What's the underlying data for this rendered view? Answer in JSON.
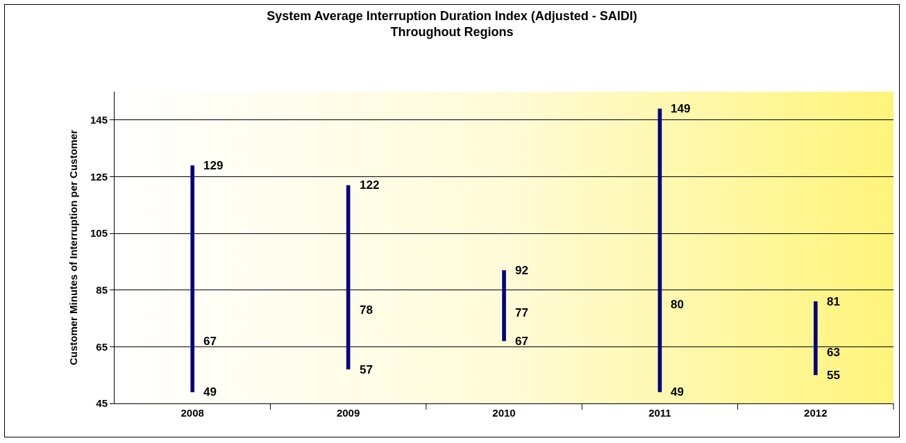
{
  "chart_data": {
    "type": "bar",
    "title": "System Average Interruption Duration Index (Adjusted - SAIDI)\nThroughout Regions",
    "ylabel": "Customer Minutes of Interruption per Customer",
    "categories": [
      "2008",
      "2009",
      "2010",
      "2011",
      "2012"
    ],
    "base": [
      49,
      57,
      67,
      49,
      55
    ],
    "values": [
      80,
      65,
      25,
      100,
      26
    ],
    "color": "#000080",
    "ylim": [
      45,
      155
    ],
    "yticks": [
      45,
      65,
      85,
      105,
      125,
      145
    ],
    "grid": "y",
    "annotations": [
      {
        "text": "129",
        "x": "2008",
        "y": 129
      },
      {
        "text": "67",
        "x": "2008",
        "y": 67
      },
      {
        "text": "49",
        "x": "2008",
        "y": 49
      },
      {
        "text": "122",
        "x": "2009",
        "y": 122
      },
      {
        "text": "78",
        "x": "2009",
        "y": 78
      },
      {
        "text": "57",
        "x": "2009",
        "y": 57
      },
      {
        "text": "92",
        "x": "2010",
        "y": 92
      },
      {
        "text": "77",
        "x": "2010",
        "y": 77
      },
      {
        "text": "67",
        "x": "2010",
        "y": 67
      },
      {
        "text": "149",
        "x": "2011",
        "y": 149
      },
      {
        "text": "80",
        "x": "2011",
        "y": 80
      },
      {
        "text": "49",
        "x": "2011",
        "y": 49
      },
      {
        "text": "81",
        "x": "2012",
        "y": 81
      },
      {
        "text": "63",
        "x": "2012",
        "y": 63
      },
      {
        "text": "55",
        "x": "2012",
        "y": 55
      }
    ]
  }
}
